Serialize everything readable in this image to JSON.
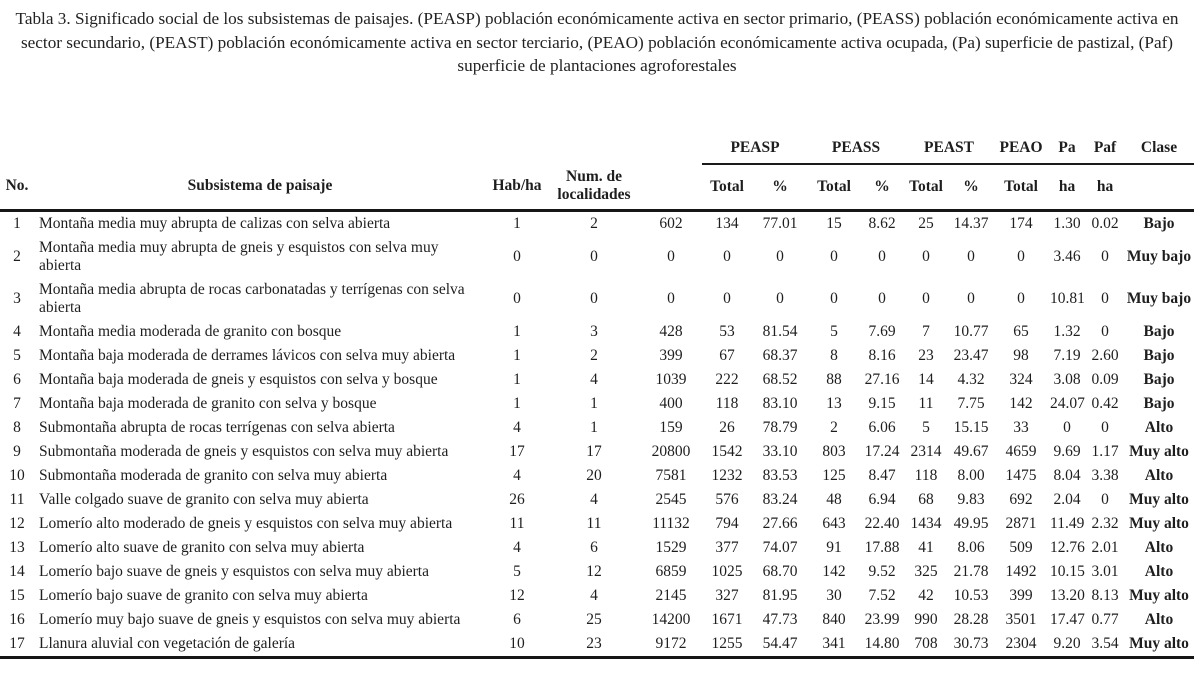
{
  "caption": "Tabla 3. Significado social de los subsistemas de paisajes. (PEASP) población económicamente activa en sector primario, (PEASS) población económicamente activa en sector secundario, (PEAST) población económicamente activa en sector terciario, (PEAO) población económicamente activa ocupada, (Pa) superficie de pastizal, (Paf) superficie de plantaciones agroforestales",
  "table": {
    "group_headers": {
      "peasp": "PEASP",
      "peass": "PEASS",
      "peast": "PEAST",
      "peao": "PEAO",
      "pa": "Pa",
      "paf": "Paf",
      "clase": "Clase"
    },
    "sub_headers": {
      "no": "No.",
      "name": "Subsistema de paisaje",
      "hab_ha": "Hab/ha",
      "num_loc": "Num. de localidades",
      "poblacion": "",
      "total": "Total",
      "pct": "%",
      "ha": "ha",
      "clase": ""
    },
    "row_fields": [
      "no",
      "subsystem-name",
      "hab-ha",
      "num-localidades",
      "poblacion",
      "peasp-total",
      "peasp-pct",
      "peass-total",
      "peass-pct",
      "peast-total",
      "peast-pct",
      "peao-total",
      "pa-ha",
      "paf-ha",
      "clase"
    ],
    "rows": [
      [
        "1",
        "Montaña media muy abrupta de calizas con selva abierta",
        "1",
        "2",
        "602",
        "134",
        "77.01",
        "15",
        "8.62",
        "25",
        "14.37",
        "174",
        "1.30",
        "0.02",
        "Bajo"
      ],
      [
        "2",
        "Montaña media muy abrupta de gneis y esquistos con selva muy abierta",
        "0",
        "0",
        "0",
        "0",
        "0",
        "0",
        "0",
        "0",
        "0",
        "0",
        "3.46",
        "0",
        "Muy bajo"
      ],
      [
        "3",
        "Montaña media abrupta de rocas carbonatadas y terrígenas con selva abierta",
        "0",
        "0",
        "0",
        "0",
        "0",
        "0",
        "0",
        "0",
        "0",
        "0",
        "10.81",
        "0",
        "Muy bajo"
      ],
      [
        "4",
        "Montaña media moderada de granito con bosque",
        "1",
        "3",
        "428",
        "53",
        "81.54",
        "5",
        "7.69",
        "7",
        "10.77",
        "65",
        "1.32",
        "0",
        "Bajo"
      ],
      [
        "5",
        "Montaña baja moderada de derrames lávicos con selva muy abierta",
        "1",
        "2",
        "399",
        "67",
        "68.37",
        "8",
        "8.16",
        "23",
        "23.47",
        "98",
        "7.19",
        "2.60",
        "Bajo"
      ],
      [
        "6",
        "Montaña baja moderada de gneis y esquistos con selva y bosque",
        "1",
        "4",
        "1039",
        "222",
        "68.52",
        "88",
        "27.16",
        "14",
        "4.32",
        "324",
        "3.08",
        "0.09",
        "Bajo"
      ],
      [
        "7",
        "Montaña baja moderada de granito con selva y bosque",
        "1",
        "1",
        "400",
        "118",
        "83.10",
        "13",
        "9.15",
        "11",
        "7.75",
        "142",
        "24.07",
        "0.42",
        "Bajo"
      ],
      [
        "8",
        "Submontaña abrupta de rocas terrígenas con selva abierta",
        "4",
        "1",
        "159",
        "26",
        "78.79",
        "2",
        "6.06",
        "5",
        "15.15",
        "33",
        "0",
        "0",
        "Alto"
      ],
      [
        "9",
        "Submontaña moderada de gneis y esquistos con selva muy abierta",
        "17",
        "17",
        "20800",
        "1542",
        "33.10",
        "803",
        "17.24",
        "2314",
        "49.67",
        "4659",
        "9.69",
        "1.17",
        "Muy alto"
      ],
      [
        "10",
        "Submontaña moderada de granito con selva muy abierta",
        "4",
        "20",
        "7581",
        "1232",
        "83.53",
        "125",
        "8.47",
        "118",
        "8.00",
        "1475",
        "8.04",
        "3.38",
        "Alto"
      ],
      [
        "11",
        "Valle colgado suave de granito con selva muy abierta",
        "26",
        "4",
        "2545",
        "576",
        "83.24",
        "48",
        "6.94",
        "68",
        "9.83",
        "692",
        "2.04",
        "0",
        "Muy alto"
      ],
      [
        "12",
        "Lomerío alto moderado de gneis y esquistos con selva muy abierta",
        "11",
        "11",
        "11132",
        "794",
        "27.66",
        "643",
        "22.40",
        "1434",
        "49.95",
        "2871",
        "11.49",
        "2.32",
        "Muy alto"
      ],
      [
        "13",
        "Lomerío alto suave de granito con selva muy abierta",
        "4",
        "6",
        "1529",
        "377",
        "74.07",
        "91",
        "17.88",
        "41",
        "8.06",
        "509",
        "12.76",
        "2.01",
        "Alto"
      ],
      [
        "14",
        "Lomerío bajo suave de gneis y esquistos con selva muy abierta",
        "5",
        "12",
        "6859",
        "1025",
        "68.70",
        "142",
        "9.52",
        "325",
        "21.78",
        "1492",
        "10.15",
        "3.01",
        "Alto"
      ],
      [
        "15",
        "Lomerío bajo suave de granito con selva muy abierta",
        "12",
        "4",
        "2145",
        "327",
        "81.95",
        "30",
        "7.52",
        "42",
        "10.53",
        "399",
        "13.20",
        "8.13",
        "Muy alto"
      ],
      [
        "16",
        "Lomerío muy bajo suave de gneis y esquistos con selva muy abierta",
        "6",
        "25",
        "14200",
        "1671",
        "47.73",
        "840",
        "23.99",
        "990",
        "28.28",
        "3501",
        "17.47",
        "0.77",
        "Alto"
      ],
      [
        "17",
        "Llanura aluvial con vegetación de galería",
        "10",
        "23",
        "9172",
        "1255",
        "54.47",
        "341",
        "14.80",
        "708",
        "30.73",
        "2304",
        "9.20",
        "3.54",
        "Muy alto"
      ]
    ]
  }
}
